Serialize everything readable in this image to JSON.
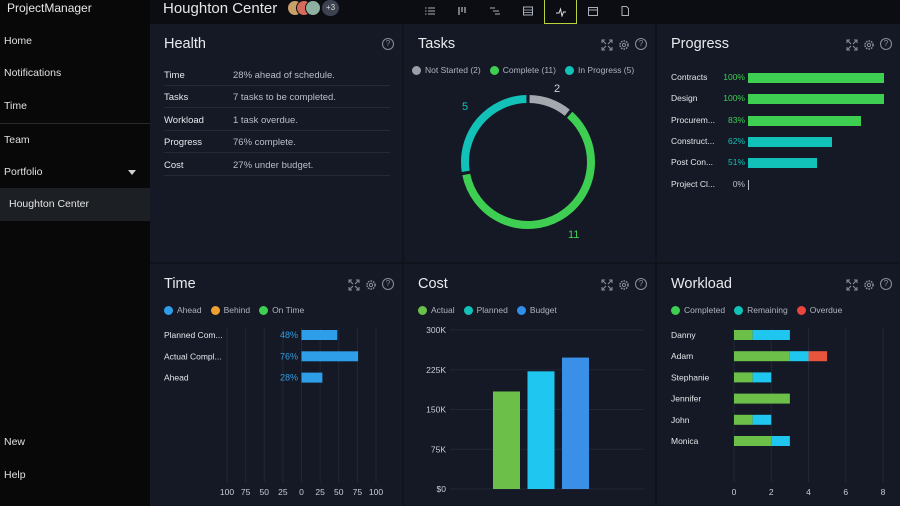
{
  "app": {
    "brand": "ProjectManager"
  },
  "sidebar": {
    "items": [
      {
        "label": "Home"
      },
      {
        "label": "Notifications"
      },
      {
        "label": "Time"
      },
      {
        "label": "Team"
      },
      {
        "label": "Portfolio"
      }
    ],
    "portfolio_child": "Houghton Center",
    "bottom_items": [
      {
        "label": "New"
      },
      {
        "label": "Help"
      }
    ]
  },
  "header": {
    "project_title": "Houghton Center",
    "avatar_more": "+3",
    "views": [
      "list-view-icon",
      "board-view-icon",
      "gantt-view-icon",
      "sheet-view-icon",
      "dashboard-view-icon",
      "calendar-view-icon",
      "document-view-icon"
    ],
    "active_view": "dashboard-view-icon"
  },
  "health": {
    "title": "Health",
    "rows": [
      {
        "key": "Time",
        "value": "28% ahead of schedule."
      },
      {
        "key": "Tasks",
        "value": "7 tasks to be completed."
      },
      {
        "key": "Workload",
        "value": "1 task overdue."
      },
      {
        "key": "Progress",
        "value": "76% complete."
      },
      {
        "key": "Cost",
        "value": "27% under budget."
      }
    ]
  },
  "tasks": {
    "title": "Tasks",
    "legend": [
      {
        "label": "Not Started (2)",
        "color": "#9aa0a8"
      },
      {
        "label": "Complete (11)",
        "color": "#3ecf52"
      },
      {
        "label": "In Progress (5)",
        "color": "#12c2b8"
      }
    ],
    "chart_data": {
      "type": "pie",
      "categories": [
        "Not Started",
        "Complete",
        "In Progress"
      ],
      "values": [
        2,
        11,
        5
      ],
      "labels": [
        "2",
        "11",
        "5"
      ],
      "colors": [
        "#a4a9b0",
        "#3ecf52",
        "#12c2b8"
      ]
    }
  },
  "progress": {
    "title": "Progress",
    "rows": [
      {
        "name": "Contracts",
        "pct_label": "100%",
        "value": 100,
        "color": "#3ecf52"
      },
      {
        "name": "Design",
        "pct_label": "100%",
        "value": 100,
        "color": "#3ecf52"
      },
      {
        "name": "Procurem...",
        "pct_label": "83%",
        "value": 83,
        "color": "#3ecf52"
      },
      {
        "name": "Construct...",
        "pct_label": "62%",
        "value": 62,
        "color": "#12c2b8"
      },
      {
        "name": "Post Con...",
        "pct_label": "51%",
        "value": 51,
        "color": "#12c2b8"
      },
      {
        "name": "Project Cl...",
        "pct_label": "0%",
        "value": 0,
        "color": "#9aa0a8"
      }
    ]
  },
  "time": {
    "title": "Time",
    "legend": [
      {
        "label": "Ahead",
        "color": "#2f9ee8"
      },
      {
        "label": "Behind",
        "color": "#f0a030"
      },
      {
        "label": "On Time",
        "color": "#3ecf52"
      }
    ],
    "chart_data": {
      "type": "bar",
      "orientation": "horizontal",
      "categories": [
        "Planned Com...",
        "Actual Compl...",
        "Ahead"
      ],
      "values": [
        48,
        76,
        28
      ],
      "value_labels": [
        "48%",
        "76%",
        "28%"
      ],
      "xticks": [
        "100",
        "75",
        "50",
        "25",
        "0",
        "25",
        "50",
        "75",
        "100"
      ],
      "xlim": [
        -100,
        100
      ],
      "color": "#2f9ee8"
    }
  },
  "cost": {
    "title": "Cost",
    "legend": [
      {
        "label": "Actual",
        "color": "#6cc04a"
      },
      {
        "label": "Planned",
        "color": "#12c2b8"
      },
      {
        "label": "Budget",
        "color": "#2f8ee8"
      }
    ],
    "chart_data": {
      "type": "bar",
      "categories": [
        "Actual",
        "Planned",
        "Budget"
      ],
      "values": [
        184000,
        222000,
        248000
      ],
      "colors": [
        "#6cc04a",
        "#1ec6f0",
        "#3a8fe6"
      ],
      "yticks": [
        "$0",
        "75K",
        "150K",
        "225K",
        "300K"
      ],
      "ylim": [
        0,
        300000
      ]
    }
  },
  "workload": {
    "title": "Workload",
    "legend": [
      {
        "label": "Completed",
        "color": "#3ecf52"
      },
      {
        "label": "Remaining",
        "color": "#12c2b8"
      },
      {
        "label": "Overdue",
        "color": "#e8453c"
      }
    ],
    "chart_data": {
      "type": "bar",
      "orientation": "horizontal",
      "stacked": true,
      "categories": [
        "Danny",
        "Adam",
        "Stephanie",
        "Jennifer",
        "John",
        "Monica"
      ],
      "series": [
        {
          "name": "Completed",
          "values": [
            1,
            3,
            1,
            3,
            1,
            2
          ],
          "color": "#6cc04a"
        },
        {
          "name": "Remaining",
          "values": [
            2,
            1,
            1,
            0,
            1,
            1
          ],
          "color": "#1ec6f0"
        },
        {
          "name": "Overdue",
          "values": [
            0,
            1,
            0,
            0,
            0,
            0
          ],
          "color": "#e8553c"
        }
      ],
      "xticks": [
        "0",
        "2",
        "4",
        "6",
        "8"
      ],
      "xlim": [
        0,
        8
      ]
    }
  }
}
